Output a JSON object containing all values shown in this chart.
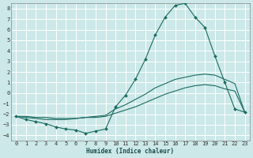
{
  "xlabel": "Humidex (Indice chaleur)",
  "bg_color": "#cce8e8",
  "grid_color": "#b0d0d0",
  "line_color": "#1a6b60",
  "xlim": [
    -0.5,
    23.5
  ],
  "ylim": [
    -4.5,
    8.5
  ],
  "xticks": [
    0,
    1,
    2,
    3,
    4,
    5,
    6,
    7,
    8,
    9,
    10,
    11,
    12,
    13,
    14,
    15,
    16,
    17,
    18,
    19,
    20,
    21,
    22,
    23
  ],
  "yticks": [
    -4,
    -3,
    -2,
    -1,
    0,
    1,
    2,
    3,
    4,
    5,
    6,
    7,
    8
  ],
  "series": [
    {
      "x": [
        0,
        1,
        2,
        3,
        4,
        5,
        6,
        7,
        8,
        9,
        10,
        11,
        12,
        13,
        14,
        15,
        16,
        17,
        18,
        19,
        20,
        21,
        22,
        23
      ],
      "y": [
        -2.2,
        -2.5,
        -2.7,
        -2.9,
        -3.2,
        -3.4,
        -3.5,
        -3.8,
        -3.6,
        -3.4,
        -1.3,
        -0.2,
        1.3,
        3.2,
        5.5,
        7.2,
        8.3,
        8.5,
        7.2,
        6.2,
        3.5,
        1.0,
        -1.5,
        -1.8
      ],
      "marker": "D",
      "markersize": 2.0
    },
    {
      "x": [
        0,
        1,
        2,
        3,
        4,
        5,
        6,
        7,
        8,
        9,
        10,
        11,
        12,
        13,
        14,
        15,
        16,
        17,
        18,
        19,
        20,
        21,
        22,
        23
      ],
      "y": [
        -2.2,
        -2.3,
        -2.4,
        -2.5,
        -2.5,
        -2.5,
        -2.4,
        -2.3,
        -2.2,
        -2.1,
        -1.5,
        -1.1,
        -0.6,
        -0.1,
        0.5,
        0.9,
        1.3,
        1.5,
        1.7,
        1.8,
        1.7,
        1.3,
        0.9,
        -1.8
      ],
      "marker": null,
      "markersize": 0
    },
    {
      "x": [
        0,
        1,
        2,
        3,
        4,
        5,
        6,
        7,
        8,
        9,
        10,
        11,
        12,
        13,
        14,
        15,
        16,
        17,
        18,
        19,
        20,
        21,
        22,
        23
      ],
      "y": [
        -2.2,
        -2.2,
        -2.3,
        -2.3,
        -2.4,
        -2.4,
        -2.4,
        -2.3,
        -2.3,
        -2.2,
        -1.9,
        -1.6,
        -1.3,
        -0.9,
        -0.5,
        -0.1,
        0.2,
        0.5,
        0.7,
        0.8,
        0.7,
        0.4,
        0.2,
        -1.8
      ],
      "marker": null,
      "markersize": 0
    }
  ]
}
